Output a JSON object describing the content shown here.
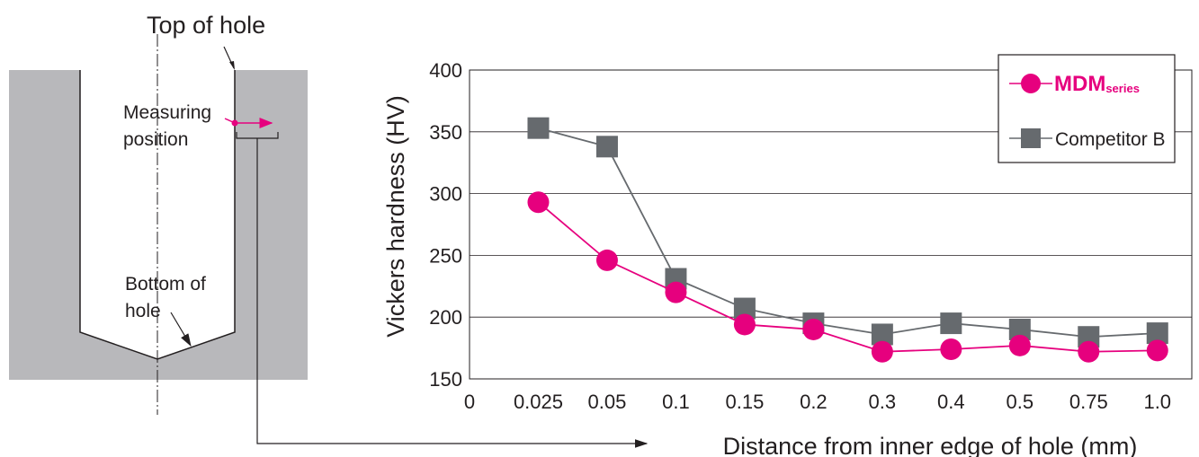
{
  "diagram": {
    "top_label": "Top of hole",
    "measuring_label_1": "Measuring",
    "measuring_label_2": "position",
    "bottom_label_1": "Bottom of",
    "bottom_label_2": "hole"
  },
  "colors": {
    "mdm": "#e6007e",
    "competitor": "#666a6e",
    "block": "#b8b8bb",
    "ink": "#231f20"
  },
  "chart_data": {
    "type": "line",
    "categories": [
      "0",
      "0.025",
      "0.05",
      "0.1",
      "0.15",
      "0.2",
      "0.3",
      "0.4",
      "0.5",
      "0.75",
      "1.0"
    ],
    "xlabel": "Distance from inner edge of hole (mm)",
    "ylabel": "Vickers hardness (HV)",
    "ylim": [
      150,
      400
    ],
    "yticks": [
      150,
      200,
      250,
      300,
      350,
      400
    ],
    "grid": true,
    "legend_position": "top-right",
    "series": [
      {
        "name": "MDM",
        "name_suffix": "series",
        "marker": "circle",
        "values": [
          null,
          293,
          246,
          220,
          194,
          190,
          172,
          174,
          177,
          172,
          173
        ]
      },
      {
        "name": "Competitor B",
        "marker": "square",
        "values": [
          null,
          353,
          338,
          231,
          207,
          195,
          186,
          195,
          190,
          184,
          187
        ]
      }
    ]
  }
}
